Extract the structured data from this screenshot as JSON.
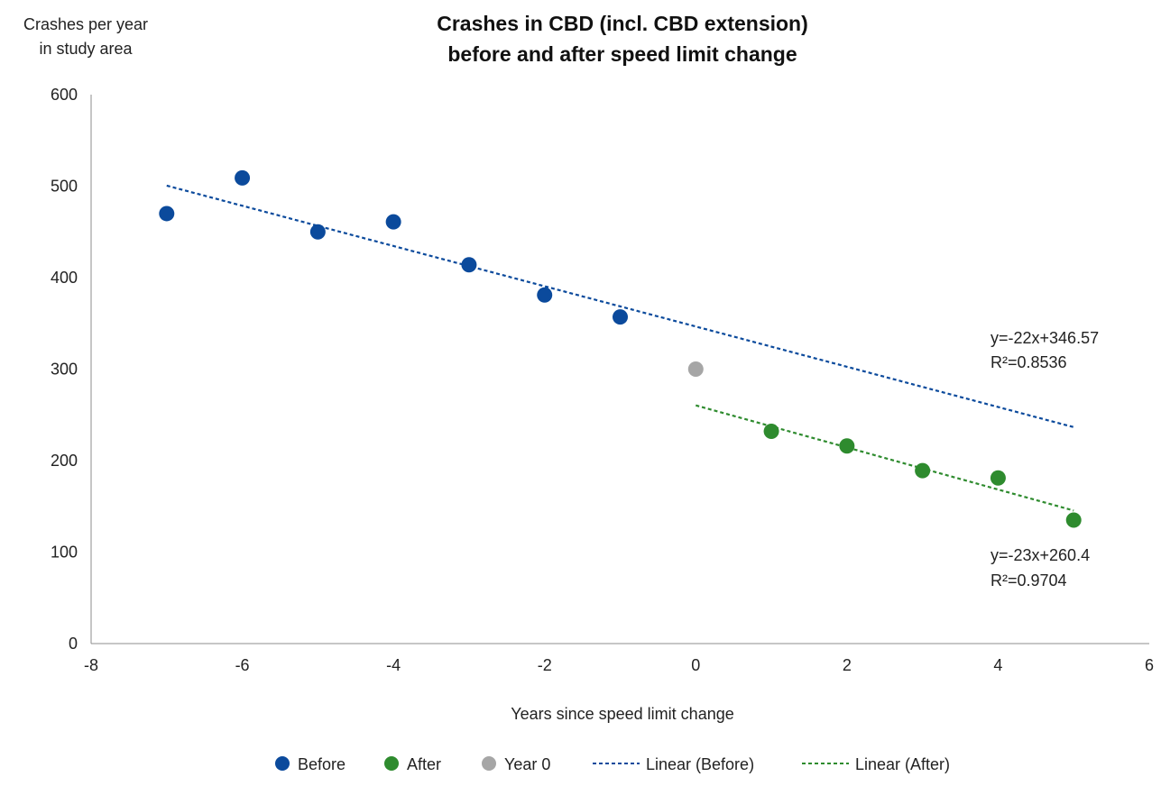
{
  "chart_data": {
    "type": "scatter",
    "title_lines": [
      "Crashes in CBD (incl. CBD extension)",
      "before and after speed limit change"
    ],
    "ylabel_lines": [
      "Crashes per year",
      "in study area"
    ],
    "xlabel": "Years since speed limit change",
    "xlim": [
      -8,
      6
    ],
    "ylim": [
      0,
      600
    ],
    "x_ticks": [
      -8,
      -6,
      -4,
      -2,
      0,
      2,
      4,
      6
    ],
    "y_ticks": [
      0,
      100,
      200,
      300,
      400,
      500,
      600
    ],
    "grid": false,
    "legend_position": "bottom",
    "series": [
      {
        "name": "Before",
        "color": "#0b4a9c",
        "points": [
          [
            -7,
            470
          ],
          [
            -6,
            509
          ],
          [
            -5,
            450
          ],
          [
            -4,
            461
          ],
          [
            -3,
            414
          ],
          [
            -2,
            381
          ],
          [
            -1,
            357
          ]
        ]
      },
      {
        "name": "After",
        "color": "#2e8b2e",
        "points": [
          [
            1,
            232
          ],
          [
            2,
            216
          ],
          [
            3,
            189
          ],
          [
            4,
            181
          ],
          [
            5,
            135
          ]
        ]
      },
      {
        "name": "Year 0",
        "color": "#a6a6a6",
        "points": [
          [
            0,
            300
          ]
        ]
      }
    ],
    "trendlines": [
      {
        "name": "Linear (Before)",
        "color": "#0b4a9c",
        "x_range": [
          -7,
          5
        ],
        "equation": "y=-22x+346.57",
        "r_squared": "R²=0.8536"
      },
      {
        "name": "Linear (After)",
        "color": "#2e8b2e",
        "x_range": [
          0,
          5
        ],
        "equation": "y=-23x+260.4",
        "r_squared": "R²=0.9704"
      }
    ]
  }
}
